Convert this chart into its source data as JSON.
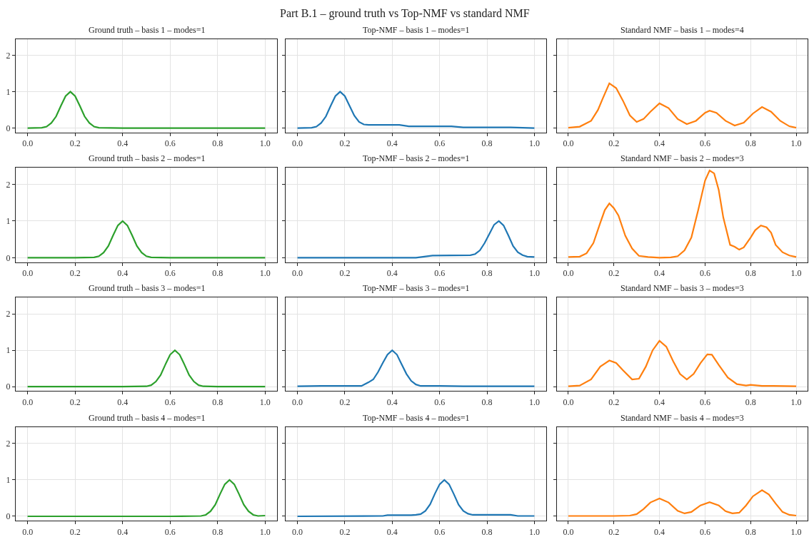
{
  "chart_data": [
    {
      "type": "line",
      "title": "Ground truth – basis 1 – modes=1",
      "annotations": [
        "Part B.1 – ground truth vs Top-NMF vs standard NMF"
      ],
      "xlim": [
        -0.05,
        1.05
      ],
      "ylim": [
        -0.12,
        2.45
      ],
      "xticks": [
        {
          "value": 0,
          "label": "0.0"
        },
        {
          "value": 0.2,
          "label": "0.2"
        },
        {
          "value": 0.4,
          "label": "0.4"
        },
        {
          "value": 0.6,
          "label": "0.6"
        },
        {
          "value": 0.8,
          "label": "0.8"
        },
        {
          "value": 1,
          "label": "1.0"
        }
      ],
      "yticks": [
        0,
        1,
        2
      ],
      "grid": true,
      "series": [
        {
          "color": "#2ca02c",
          "x": [
            0,
            0.06,
            0.08,
            0.1,
            0.12,
            0.14,
            0.16,
            0.18,
            0.2,
            0.22,
            0.24,
            0.26,
            0.28,
            0.3,
            0.4,
            0.6,
            0.8,
            1.0
          ],
          "values": [
            0,
            0.01,
            0.04,
            0.14,
            0.32,
            0.61,
            0.88,
            1,
            0.88,
            0.61,
            0.32,
            0.14,
            0.04,
            0.01,
            0,
            0,
            0,
            0
          ]
        }
      ]
    },
    {
      "type": "line",
      "title": "Top-NMF – basis 1 – modes=1",
      "tick_labels": "x",
      "xlim": [
        -0.05,
        1.05
      ],
      "ylim": [
        -0.12,
        2.45
      ],
      "xticks": [
        {
          "value": 0,
          "label": "0.0"
        },
        {
          "value": 0.2,
          "label": "0.2"
        },
        {
          "value": 0.4,
          "label": "0.4"
        },
        {
          "value": 0.6,
          "label": "0.6"
        },
        {
          "value": 0.8,
          "label": "0.8"
        },
        {
          "value": 1,
          "label": "1.0"
        }
      ],
      "yticks": [
        0,
        1,
        2
      ],
      "grid": true,
      "series": [
        {
          "color": "#1f77b4",
          "x": [
            0,
            0.06,
            0.08,
            0.1,
            0.12,
            0.14,
            0.16,
            0.18,
            0.2,
            0.22,
            0.24,
            0.26,
            0.28,
            0.3,
            0.43,
            0.47,
            0.65,
            0.7,
            0.9,
            1.0
          ],
          "values": [
            0,
            0.01,
            0.04,
            0.14,
            0.32,
            0.61,
            0.88,
            1,
            0.88,
            0.61,
            0.34,
            0.17,
            0.1,
            0.09,
            0.09,
            0.05,
            0.05,
            0.02,
            0.02,
            0
          ]
        }
      ]
    },
    {
      "type": "line",
      "title": "Standard NMF – basis 1 – modes=4",
      "tick_labels": "x",
      "xlim": [
        -0.05,
        1.05
      ],
      "ylim": [
        -0.12,
        2.45
      ],
      "xticks": [
        {
          "value": 0,
          "label": "0.0"
        },
        {
          "value": 0.2,
          "label": "0.2"
        },
        {
          "value": 0.4,
          "label": "0.4"
        },
        {
          "value": 0.6,
          "label": "0.6"
        },
        {
          "value": 0.8,
          "label": "0.8"
        },
        {
          "value": 1,
          "label": "1.0"
        }
      ],
      "yticks": [
        0,
        1,
        2
      ],
      "grid": true,
      "series": [
        {
          "color": "#ff7f0e",
          "x": [
            0,
            0.05,
            0.1,
            0.13,
            0.15,
            0.18,
            0.21,
            0.24,
            0.27,
            0.3,
            0.33,
            0.36,
            0.4,
            0.44,
            0.48,
            0.52,
            0.56,
            0.6,
            0.62,
            0.65,
            0.69,
            0.73,
            0.77,
            0.81,
            0.85,
            0.89,
            0.93,
            0.97,
            1.0
          ],
          "values": [
            0.01,
            0.04,
            0.2,
            0.5,
            0.8,
            1.23,
            1.1,
            0.75,
            0.35,
            0.17,
            0.25,
            0.45,
            0.68,
            0.55,
            0.25,
            0.11,
            0.2,
            0.42,
            0.48,
            0.42,
            0.2,
            0.07,
            0.15,
            0.4,
            0.58,
            0.45,
            0.2,
            0.05,
            0.01
          ]
        }
      ]
    },
    {
      "type": "line",
      "title": "Ground truth – basis 2 – modes=1",
      "xlim": [
        -0.05,
        1.05
      ],
      "ylim": [
        -0.12,
        2.45
      ],
      "xticks": [
        {
          "value": 0,
          "label": "0.0"
        },
        {
          "value": 0.2,
          "label": "0.2"
        },
        {
          "value": 0.4,
          "label": "0.4"
        },
        {
          "value": 0.6,
          "label": "0.6"
        },
        {
          "value": 0.8,
          "label": "0.8"
        },
        {
          "value": 1,
          "label": "1.0"
        }
      ],
      "yticks": [
        0,
        1,
        2
      ],
      "grid": true,
      "series": [
        {
          "color": "#2ca02c",
          "x": [
            0,
            0.2,
            0.28,
            0.3,
            0.32,
            0.34,
            0.36,
            0.38,
            0.4,
            0.42,
            0.44,
            0.46,
            0.48,
            0.5,
            0.52,
            0.6,
            0.8,
            1.0
          ],
          "values": [
            0,
            0,
            0.01,
            0.04,
            0.14,
            0.32,
            0.61,
            0.88,
            1,
            0.88,
            0.61,
            0.32,
            0.14,
            0.04,
            0.01,
            0,
            0,
            0
          ]
        }
      ]
    },
    {
      "type": "line",
      "title": "Top-NMF – basis 2 – modes=1",
      "tick_labels": "x",
      "xlim": [
        -0.05,
        1.05
      ],
      "ylim": [
        -0.12,
        2.45
      ],
      "xticks": [
        {
          "value": 0,
          "label": "0.0"
        },
        {
          "value": 0.2,
          "label": "0.2"
        },
        {
          "value": 0.4,
          "label": "0.4"
        },
        {
          "value": 0.6,
          "label": "0.6"
        },
        {
          "value": 0.8,
          "label": "0.8"
        },
        {
          "value": 1,
          "label": "1.0"
        }
      ],
      "yticks": [
        0,
        1,
        2
      ],
      "grid": true,
      "series": [
        {
          "color": "#1f77b4",
          "x": [
            0,
            0.5,
            0.57,
            0.73,
            0.75,
            0.77,
            0.79,
            0.81,
            0.83,
            0.85,
            0.87,
            0.89,
            0.91,
            0.93,
            0.95,
            0.97,
            1.0
          ],
          "values": [
            0,
            0,
            0.06,
            0.07,
            0.1,
            0.2,
            0.4,
            0.65,
            0.9,
            1,
            0.88,
            0.61,
            0.32,
            0.15,
            0.07,
            0.03,
            0.02
          ]
        }
      ]
    },
    {
      "type": "line",
      "title": "Standard NMF – basis 2 – modes=3",
      "tick_labels": "x",
      "xlim": [
        -0.05,
        1.05
      ],
      "ylim": [
        -0.12,
        2.45
      ],
      "xticks": [
        {
          "value": 0,
          "label": "0.0"
        },
        {
          "value": 0.2,
          "label": "0.2"
        },
        {
          "value": 0.4,
          "label": "0.4"
        },
        {
          "value": 0.6,
          "label": "0.6"
        },
        {
          "value": 0.8,
          "label": "0.8"
        },
        {
          "value": 1,
          "label": "1.0"
        }
      ],
      "yticks": [
        0,
        1,
        2
      ],
      "grid": true,
      "series": [
        {
          "color": "#ff7f0e",
          "x": [
            0,
            0.05,
            0.08,
            0.11,
            0.14,
            0.16,
            0.18,
            0.2,
            0.22,
            0.25,
            0.28,
            0.31,
            0.35,
            0.4,
            0.45,
            0.48,
            0.51,
            0.54,
            0.57,
            0.6,
            0.62,
            0.64,
            0.66,
            0.68,
            0.71,
            0.73,
            0.75,
            0.77,
            0.8,
            0.82,
            0.845,
            0.87,
            0.89,
            0.91,
            0.94,
            0.97,
            1.0
          ],
          "values": [
            0.02,
            0.03,
            0.12,
            0.4,
            0.95,
            1.3,
            1.48,
            1.35,
            1.15,
            0.6,
            0.25,
            0.05,
            0.02,
            0,
            0.01,
            0.04,
            0.2,
            0.55,
            1.3,
            2.1,
            2.38,
            2.3,
            1.85,
            1.1,
            0.35,
            0.3,
            0.22,
            0.28,
            0.55,
            0.75,
            0.88,
            0.83,
            0.68,
            0.35,
            0.15,
            0.06,
            0.02
          ]
        }
      ]
    },
    {
      "type": "line",
      "title": "Ground truth – basis 3 – modes=1",
      "xlim": [
        -0.05,
        1.05
      ],
      "ylim": [
        -0.12,
        2.45
      ],
      "xticks": [
        {
          "value": 0,
          "label": "0.0"
        },
        {
          "value": 0.2,
          "label": "0.2"
        },
        {
          "value": 0.4,
          "label": "0.4"
        },
        {
          "value": 0.6,
          "label": "0.6"
        },
        {
          "value": 0.8,
          "label": "0.8"
        },
        {
          "value": 1,
          "label": "1.0"
        }
      ],
      "yticks": [
        0,
        1,
        2
      ],
      "grid": true,
      "series": [
        {
          "color": "#2ca02c",
          "x": [
            0,
            0.2,
            0.4,
            0.5,
            0.52,
            0.54,
            0.56,
            0.58,
            0.6,
            0.62,
            0.64,
            0.66,
            0.68,
            0.7,
            0.72,
            0.74,
            0.8,
            1.0
          ],
          "values": [
            0,
            0,
            0,
            0.01,
            0.04,
            0.14,
            0.32,
            0.61,
            0.88,
            1,
            0.88,
            0.61,
            0.32,
            0.14,
            0.04,
            0.01,
            0,
            0
          ]
        }
      ]
    },
    {
      "type": "line",
      "title": "Top-NMF – basis 3 – modes=1",
      "tick_labels": "x",
      "xlim": [
        -0.05,
        1.05
      ],
      "ylim": [
        -0.12,
        2.45
      ],
      "xticks": [
        {
          "value": 0,
          "label": "0.0"
        },
        {
          "value": 0.2,
          "label": "0.2"
        },
        {
          "value": 0.4,
          "label": "0.4"
        },
        {
          "value": 0.6,
          "label": "0.6"
        },
        {
          "value": 0.8,
          "label": "0.8"
        },
        {
          "value": 1,
          "label": "1.0"
        }
      ],
      "yticks": [
        0,
        1,
        2
      ],
      "grid": true,
      "series": [
        {
          "color": "#1f77b4",
          "x": [
            0,
            0.1,
            0.27,
            0.3,
            0.32,
            0.34,
            0.36,
            0.38,
            0.4,
            0.42,
            0.44,
            0.46,
            0.48,
            0.5,
            0.52,
            0.6,
            0.7,
            1.0
          ],
          "values": [
            0.01,
            0.02,
            0.02,
            0.12,
            0.2,
            0.4,
            0.65,
            0.88,
            1,
            0.88,
            0.61,
            0.35,
            0.16,
            0.06,
            0.02,
            0.02,
            0.01,
            0.01
          ]
        }
      ]
    },
    {
      "type": "line",
      "title": "Standard NMF – basis 3 – modes=3",
      "tick_labels": "x",
      "xlim": [
        -0.05,
        1.05
      ],
      "ylim": [
        -0.12,
        2.45
      ],
      "xticks": [
        {
          "value": 0,
          "label": "0.0"
        },
        {
          "value": 0.2,
          "label": "0.2"
        },
        {
          "value": 0.4,
          "label": "0.4"
        },
        {
          "value": 0.6,
          "label": "0.6"
        },
        {
          "value": 0.8,
          "label": "0.8"
        },
        {
          "value": 1,
          "label": "1.0"
        }
      ],
      "yticks": [
        0,
        1,
        2
      ],
      "grid": true,
      "series": [
        {
          "color": "#ff7f0e",
          "x": [
            0,
            0.05,
            0.1,
            0.14,
            0.18,
            0.21,
            0.24,
            0.28,
            0.31,
            0.34,
            0.37,
            0.4,
            0.43,
            0.46,
            0.49,
            0.52,
            0.55,
            0.58,
            0.61,
            0.63,
            0.66,
            0.7,
            0.74,
            0.78,
            0.8,
            0.85,
            0.9,
            1.0
          ],
          "values": [
            0.01,
            0.03,
            0.2,
            0.55,
            0.72,
            0.65,
            0.45,
            0.2,
            0.22,
            0.55,
            1.0,
            1.26,
            1.1,
            0.7,
            0.35,
            0.2,
            0.35,
            0.65,
            0.89,
            0.88,
            0.6,
            0.25,
            0.07,
            0.03,
            0.05,
            0.02,
            0.02,
            0.01
          ]
        }
      ]
    },
    {
      "type": "line",
      "title": "Ground truth – basis 4 – modes=1",
      "xlim": [
        -0.05,
        1.05
      ],
      "ylim": [
        -0.12,
        2.45
      ],
      "xticks": [
        {
          "value": 0,
          "label": "0.0"
        },
        {
          "value": 0.2,
          "label": "0.2"
        },
        {
          "value": 0.4,
          "label": "0.4"
        },
        {
          "value": 0.6,
          "label": "0.6"
        },
        {
          "value": 0.8,
          "label": "0.8"
        },
        {
          "value": 1,
          "label": "1.0"
        }
      ],
      "yticks": [
        0,
        1,
        2
      ],
      "grid": true,
      "series": [
        {
          "color": "#2ca02c",
          "x": [
            0,
            0.2,
            0.4,
            0.6,
            0.73,
            0.75,
            0.77,
            0.79,
            0.81,
            0.83,
            0.85,
            0.87,
            0.89,
            0.91,
            0.93,
            0.95,
            0.97,
            1.0
          ],
          "values": [
            0,
            0,
            0,
            0,
            0.01,
            0.04,
            0.14,
            0.32,
            0.61,
            0.88,
            1,
            0.88,
            0.61,
            0.32,
            0.14,
            0.04,
            0.01,
            0.02
          ]
        }
      ]
    },
    {
      "type": "line",
      "title": "Top-NMF – basis 4 – modes=1",
      "tick_labels": "x",
      "xlim": [
        -0.05,
        1.05
      ],
      "ylim": [
        -0.12,
        2.45
      ],
      "xticks": [
        {
          "value": 0,
          "label": "0.0"
        },
        {
          "value": 0.2,
          "label": "0.2"
        },
        {
          "value": 0.4,
          "label": "0.4"
        },
        {
          "value": 0.6,
          "label": "0.6"
        },
        {
          "value": 0.8,
          "label": "0.8"
        },
        {
          "value": 1,
          "label": "1.0"
        }
      ],
      "yticks": [
        0,
        1,
        2
      ],
      "grid": true,
      "series": [
        {
          "color": "#1f77b4",
          "x": [
            0,
            0.36,
            0.38,
            0.48,
            0.5,
            0.52,
            0.54,
            0.56,
            0.58,
            0.6,
            0.62,
            0.64,
            0.66,
            0.68,
            0.7,
            0.72,
            0.74,
            0.76,
            0.9,
            0.93,
            1.0
          ],
          "values": [
            0,
            0.01,
            0.03,
            0.03,
            0.04,
            0.06,
            0.15,
            0.33,
            0.62,
            0.88,
            1,
            0.88,
            0.61,
            0.32,
            0.15,
            0.07,
            0.04,
            0.04,
            0.04,
            0.01,
            0.01
          ]
        }
      ]
    },
    {
      "type": "line",
      "title": "Standard NMF – basis 4 – modes=3",
      "tick_labels": "x",
      "xlim": [
        -0.05,
        1.05
      ],
      "ylim": [
        -0.12,
        2.45
      ],
      "xticks": [
        {
          "value": 0,
          "label": "0.0"
        },
        {
          "value": 0.2,
          "label": "0.2"
        },
        {
          "value": 0.4,
          "label": "0.4"
        },
        {
          "value": 0.6,
          "label": "0.6"
        },
        {
          "value": 0.8,
          "label": "0.8"
        },
        {
          "value": 1,
          "label": "1.0"
        }
      ],
      "yticks": [
        0,
        1,
        2
      ],
      "grid": true,
      "series": [
        {
          "color": "#ff7f0e",
          "x": [
            0,
            0.1,
            0.2,
            0.27,
            0.3,
            0.33,
            0.36,
            0.4,
            0.44,
            0.48,
            0.51,
            0.54,
            0.58,
            0.62,
            0.66,
            0.69,
            0.72,
            0.75,
            0.78,
            0.81,
            0.85,
            0.88,
            0.91,
            0.94,
            0.97,
            1.0
          ],
          "values": [
            0.01,
            0.01,
            0.01,
            0.02,
            0.06,
            0.2,
            0.38,
            0.49,
            0.38,
            0.15,
            0.08,
            0.12,
            0.3,
            0.39,
            0.3,
            0.14,
            0.08,
            0.1,
            0.3,
            0.55,
            0.72,
            0.6,
            0.35,
            0.12,
            0.04,
            0.02
          ]
        }
      ]
    }
  ]
}
